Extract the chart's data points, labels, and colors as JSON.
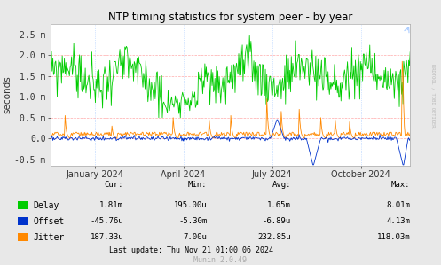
{
  "title": "NTP timing statistics for system peer - by year",
  "ylabel": "seconds",
  "right_label": "RRDTOOL / TOBI OETIKER",
  "bg_color": "#e8e8e8",
  "plot_bg_color": "#ffffff",
  "delay_color": "#00cc00",
  "offset_color": "#0033cc",
  "jitter_color": "#ff8800",
  "ylim": [
    -0.65,
    2.75
  ],
  "yticks": [
    -0.5,
    0.0,
    0.5,
    1.0,
    1.5,
    2.0,
    2.5
  ],
  "ytick_labels": [
    "-0.5 m",
    "0.0",
    "0.5 m",
    "1.0 m",
    "1.5 m",
    "2.0 m",
    "2.5 m"
  ],
  "x_tick_dates": [
    "January 2024",
    "April 2024",
    "July 2024",
    "October 2024"
  ],
  "x_tick_positions": [
    0.122,
    0.369,
    0.616,
    0.863
  ],
  "stats_headers": [
    "Cur:",
    "Min:",
    "Avg:",
    "Max:"
  ],
  "stats_rows": [
    [
      "Delay",
      "1.81m",
      "195.00u",
      "1.65m",
      "8.01m"
    ],
    [
      "Offset",
      "-45.76u",
      "-5.30m",
      "-6.89u",
      "4.13m"
    ],
    [
      "Jitter",
      "187.33u",
      "7.00u",
      "232.85u",
      "118.03m"
    ]
  ],
  "row_colors": [
    "#00cc00",
    "#0033cc",
    "#ff8800"
  ],
  "last_update": "Last update: Thu Nov 21 01:00:06 2024",
  "munin_version": "Munin 2.0.49"
}
